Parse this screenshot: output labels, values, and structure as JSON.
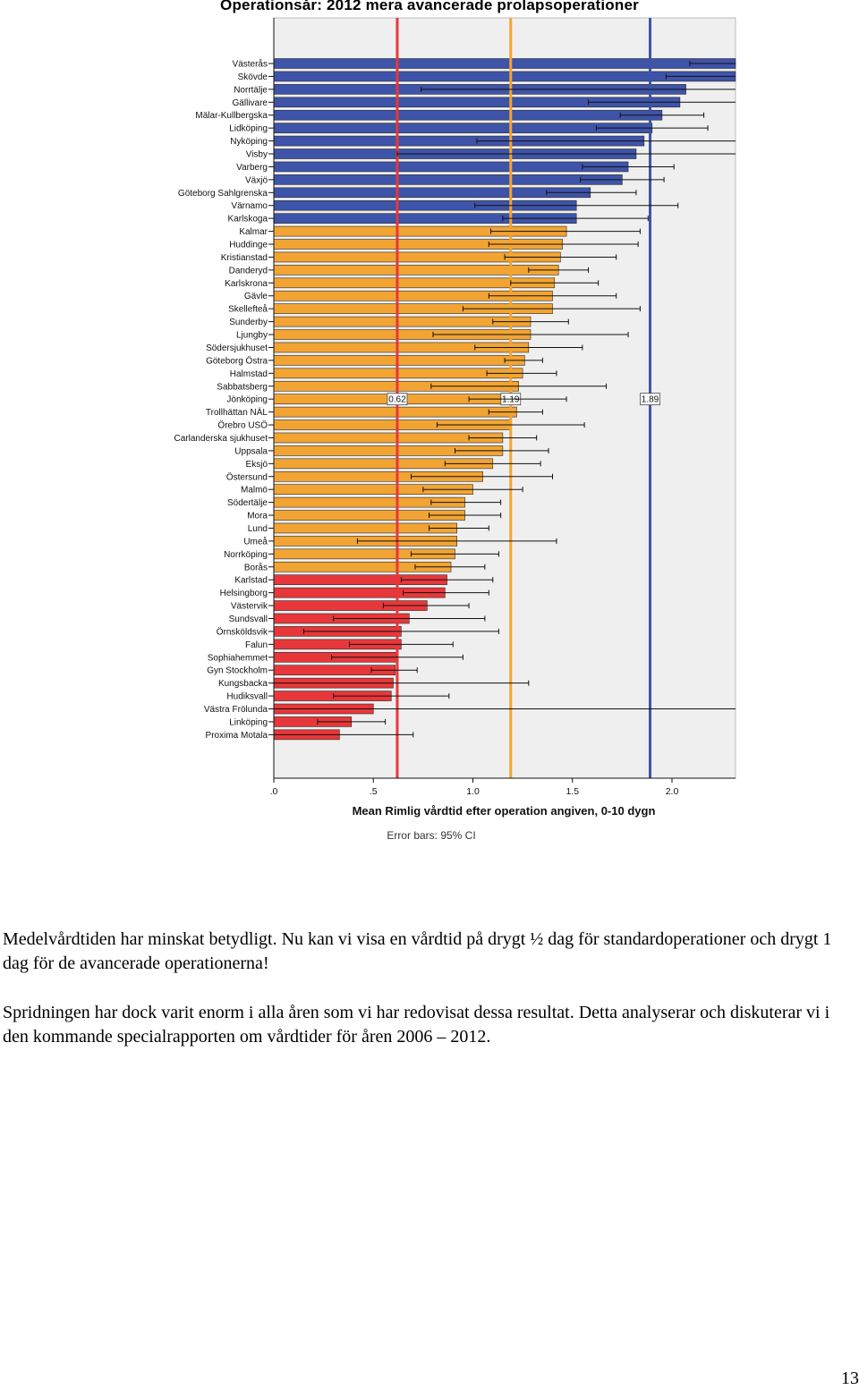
{
  "chart_data": {
    "type": "bar",
    "orientation": "horizontal",
    "title": "Operationsår: 2012   mera avancerade prolapsoperationer",
    "xlabel": "Mean Rimlig vårdtid efter operation angiven, 0-10 dygn",
    "error_bar_note": "Error bars: 95% CI",
    "xlim": [
      0,
      2.3
    ],
    "x_ticks": [
      ".0",
      ".5",
      "1.0",
      "1.5",
      "2.0"
    ],
    "x_tick_values": [
      0,
      0.5,
      1.0,
      1.5,
      2.0
    ],
    "grid": false,
    "colors": {
      "blue": "#3e54a8",
      "orange": "#f2a433",
      "red": "#e8373a",
      "plot_bg": "#efefef"
    },
    "reference_lines": [
      {
        "value": 0.62,
        "label": "0.62",
        "color": "#e8373a"
      },
      {
        "value": 1.19,
        "label": "1.19",
        "color": "#f2a433"
      },
      {
        "value": 1.89,
        "label": "1.89",
        "color": "#3e54a8"
      }
    ],
    "bars": [
      {
        "label": "Västerås",
        "value": 2.35,
        "ci": [
          2.09,
          2.45
        ],
        "group": "blue"
      },
      {
        "label": "Skövde",
        "value": 2.34,
        "ci": [
          1.97,
          2.4
        ],
        "group": "blue"
      },
      {
        "label": "Norrtälje",
        "value": 2.07,
        "ci": [
          0.74,
          2.4
        ],
        "group": "blue"
      },
      {
        "label": "Gällivare",
        "value": 2.04,
        "ci": [
          1.58,
          2.4
        ],
        "group": "blue"
      },
      {
        "label": "Mälar-Kullbergska",
        "value": 1.95,
        "ci": [
          1.74,
          2.16
        ],
        "group": "blue"
      },
      {
        "label": "Lidköping",
        "value": 1.9,
        "ci": [
          1.62,
          2.18
        ],
        "group": "blue"
      },
      {
        "label": "Nyköping",
        "value": 1.86,
        "ci": [
          1.02,
          2.4
        ],
        "group": "blue"
      },
      {
        "label": "Visby",
        "value": 1.82,
        "ci": [
          0.62,
          2.4
        ],
        "group": "blue"
      },
      {
        "label": "Varberg",
        "value": 1.78,
        "ci": [
          1.55,
          2.01
        ],
        "group": "blue"
      },
      {
        "label": "Växjö",
        "value": 1.75,
        "ci": [
          1.54,
          1.96
        ],
        "group": "blue"
      },
      {
        "label": "Göteborg Sahlgrenska",
        "value": 1.59,
        "ci": [
          1.37,
          1.82
        ],
        "group": "blue"
      },
      {
        "label": "Värnamo",
        "value": 1.52,
        "ci": [
          1.01,
          2.03
        ],
        "group": "blue"
      },
      {
        "label": "Karlskoga",
        "value": 1.52,
        "ci": [
          1.15,
          1.88
        ],
        "group": "blue"
      },
      {
        "label": "Kalmar",
        "value": 1.47,
        "ci": [
          1.09,
          1.84
        ],
        "group": "orange"
      },
      {
        "label": "Huddinge",
        "value": 1.45,
        "ci": [
          1.08,
          1.83
        ],
        "group": "orange"
      },
      {
        "label": "Kristianstad",
        "value": 1.44,
        "ci": [
          1.16,
          1.72
        ],
        "group": "orange"
      },
      {
        "label": "Danderyd",
        "value": 1.43,
        "ci": [
          1.28,
          1.58
        ],
        "group": "orange"
      },
      {
        "label": "Karlskrona",
        "value": 1.41,
        "ci": [
          1.19,
          1.63
        ],
        "group": "orange"
      },
      {
        "label": "Gävle",
        "value": 1.4,
        "ci": [
          1.08,
          1.72
        ],
        "group": "orange"
      },
      {
        "label": "Skellefteå",
        "value": 1.4,
        "ci": [
          0.95,
          1.84
        ],
        "group": "orange"
      },
      {
        "label": "Sunderby",
        "value": 1.29,
        "ci": [
          1.1,
          1.48
        ],
        "group": "orange"
      },
      {
        "label": "Ljungby",
        "value": 1.29,
        "ci": [
          0.8,
          1.78
        ],
        "group": "orange"
      },
      {
        "label": "Södersjukhuset",
        "value": 1.28,
        "ci": [
          1.01,
          1.55
        ],
        "group": "orange"
      },
      {
        "label": "Göteborg Östra",
        "value": 1.26,
        "ci": [
          1.16,
          1.35
        ],
        "group": "orange"
      },
      {
        "label": "Halmstad",
        "value": 1.25,
        "ci": [
          1.07,
          1.42
        ],
        "group": "orange"
      },
      {
        "label": "Sabbatsberg",
        "value": 1.23,
        "ci": [
          0.79,
          1.67
        ],
        "group": "orange"
      },
      {
        "label": "Jönköping",
        "value": 1.22,
        "ci": [
          0.98,
          1.47
        ],
        "group": "orange"
      },
      {
        "label": "Trollhättan NÄL",
        "value": 1.22,
        "ci": [
          1.08,
          1.35
        ],
        "group": "orange"
      },
      {
        "label": "Örebro USÖ",
        "value": 1.19,
        "ci": [
          0.82,
          1.56
        ],
        "group": "orange"
      },
      {
        "label": "Carlanderska sjukhuset",
        "value": 1.15,
        "ci": [
          0.98,
          1.32
        ],
        "group": "orange"
      },
      {
        "label": "Uppsala",
        "value": 1.15,
        "ci": [
          0.91,
          1.38
        ],
        "group": "orange"
      },
      {
        "label": "Eksjö",
        "value": 1.1,
        "ci": [
          0.86,
          1.34
        ],
        "group": "orange"
      },
      {
        "label": "Östersund",
        "value": 1.05,
        "ci": [
          0.69,
          1.4
        ],
        "group": "orange"
      },
      {
        "label": "Malmö",
        "value": 1.0,
        "ci": [
          0.75,
          1.25
        ],
        "group": "orange"
      },
      {
        "label": "Södertälje",
        "value": 0.96,
        "ci": [
          0.79,
          1.14
        ],
        "group": "orange"
      },
      {
        "label": "Mora",
        "value": 0.96,
        "ci": [
          0.78,
          1.14
        ],
        "group": "orange"
      },
      {
        "label": "Lund",
        "value": 0.92,
        "ci": [
          0.78,
          1.08
        ],
        "group": "orange"
      },
      {
        "label": "Umeå",
        "value": 0.92,
        "ci": [
          0.42,
          1.42
        ],
        "group": "orange"
      },
      {
        "label": "Norrköping",
        "value": 0.91,
        "ci": [
          0.69,
          1.13
        ],
        "group": "orange"
      },
      {
        "label": "Borås",
        "value": 0.89,
        "ci": [
          0.71,
          1.06
        ],
        "group": "orange"
      },
      {
        "label": "Karlstad",
        "value": 0.87,
        "ci": [
          0.64,
          1.1
        ],
        "group": "red"
      },
      {
        "label": "Helsingborg",
        "value": 0.86,
        "ci": [
          0.65,
          1.08
        ],
        "group": "red"
      },
      {
        "label": "Västervik",
        "value": 0.77,
        "ci": [
          0.55,
          0.98
        ],
        "group": "red"
      },
      {
        "label": "Sundsvall",
        "value": 0.68,
        "ci": [
          0.3,
          1.06
        ],
        "group": "red"
      },
      {
        "label": "Örnsköldsvik",
        "value": 0.64,
        "ci": [
          0.15,
          1.13
        ],
        "group": "red"
      },
      {
        "label": "Falun",
        "value": 0.64,
        "ci": [
          0.38,
          0.9
        ],
        "group": "red"
      },
      {
        "label": "Sophiahemmet",
        "value": 0.62,
        "ci": [
          0.29,
          0.95
        ],
        "group": "red"
      },
      {
        "label": "Gyn Stockholm",
        "value": 0.61,
        "ci": [
          0.49,
          0.72
        ],
        "group": "red"
      },
      {
        "label": "Kungsbacka",
        "value": 0.6,
        "ci": [
          0.0,
          1.28
        ],
        "group": "red"
      },
      {
        "label": "Hudiksvall",
        "value": 0.59,
        "ci": [
          0.3,
          0.88
        ],
        "group": "red"
      },
      {
        "label": "Västra Frölunda",
        "value": 0.5,
        "ci": [
          0.0,
          2.4
        ],
        "group": "red"
      },
      {
        "label": "Linköping",
        "value": 0.39,
        "ci": [
          0.22,
          0.56
        ],
        "group": "red"
      },
      {
        "label": "Proxima Motala",
        "value": 0.33,
        "ci": [
          0.0,
          0.7
        ],
        "group": "red"
      }
    ]
  },
  "text": {
    "paragraph_1": "Medelvårdtiden har minskat betydligt. Nu kan vi visa en vårdtid på drygt ½ dag för standardoperationer och drygt 1 dag för de avancerade operationerna!",
    "paragraph_2": "Spridningen har dock varit enorm i alla åren som vi har redovisat dessa resultat. Detta analyserar och diskuterar vi i den kommande specialrapporten om vårdtider för åren 2006 – 2012.",
    "page_number": "13"
  }
}
